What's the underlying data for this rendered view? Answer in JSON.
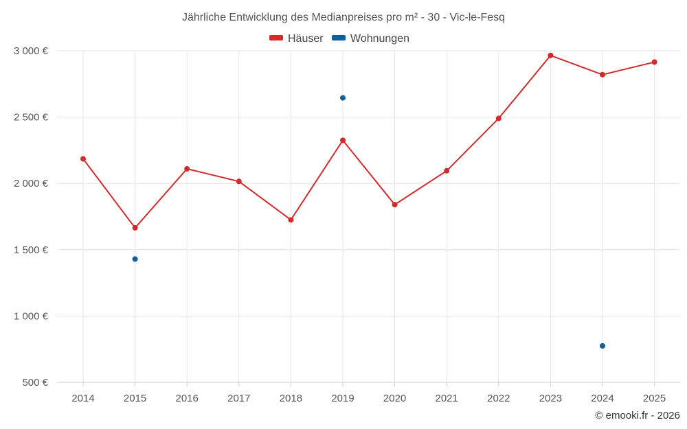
{
  "chart_data": {
    "type": "line",
    "title": "Jährliche Entwicklung des Medianpreises pro m² - 30 - Vic-le-Fesq",
    "categories": [
      "2014",
      "2015",
      "2016",
      "2017",
      "2018",
      "2019",
      "2020",
      "2021",
      "2022",
      "2023",
      "2024",
      "2025"
    ],
    "series": [
      {
        "name": "Häuser",
        "color": "#d32a2a",
        "values": [
          2185,
          1665,
          2110,
          2015,
          1725,
          2325,
          1840,
          2095,
          2490,
          2965,
          2820,
          2915
        ],
        "mode": "line+markers"
      },
      {
        "name": "Wohnungen",
        "color": "#0a5f9c",
        "values": [
          null,
          1430,
          null,
          null,
          null,
          2645,
          null,
          null,
          null,
          null,
          775,
          null
        ],
        "mode": "markers"
      }
    ],
    "ylim": [
      500,
      3000
    ],
    "yticks": [
      500,
      1000,
      1500,
      2000,
      2500,
      3000
    ],
    "ytick_labels": [
      "500 €",
      "1 000 €",
      "1 500 €",
      "2 000 €",
      "2 500 €",
      "3 000 €"
    ],
    "xlabel": "",
    "ylabel": "",
    "legend_position": "top-center",
    "grid": true
  },
  "credit": "© emooki.fr - 2026"
}
